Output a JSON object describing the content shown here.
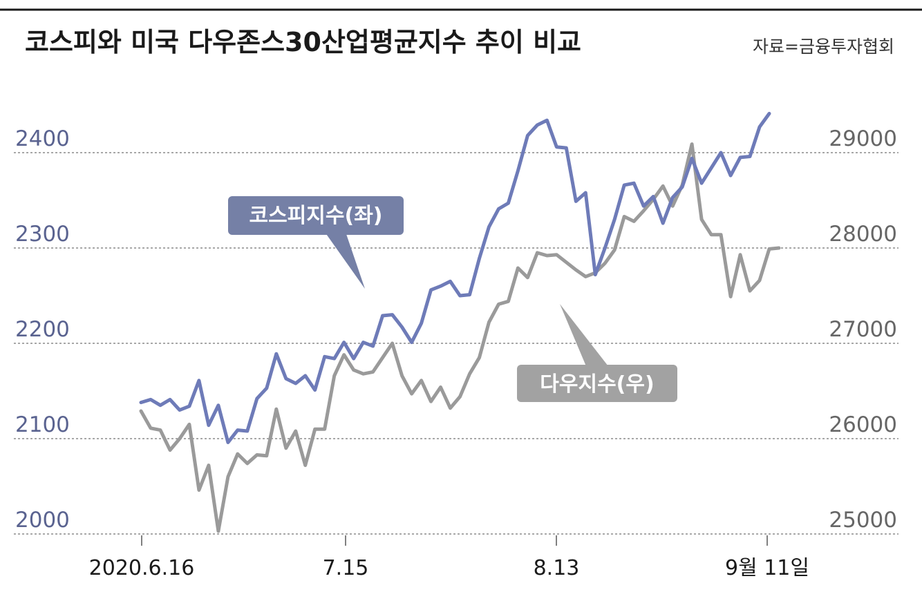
{
  "title": "코스피와 미국 다우존스30산업평균지수 추이 비교",
  "source": "자료=금융투자협회",
  "colors": {
    "kospi": "#6e7bb8",
    "dow": "#9a9a9a",
    "left_axis_text": "#5a6390",
    "right_axis_text": "#666666",
    "callout_kospi": "#7580a6",
    "callout_dow": "#a2a2a2"
  },
  "chart_data": {
    "type": "line",
    "title": "코스피와 미국 다우존스30산업평균지수 추이 비교",
    "x_ticks": [
      "2020.6.16",
      "7.15",
      "8.13",
      "9월 11일"
    ],
    "left_axis": {
      "ticks": [
        "2000",
        "2100",
        "2200",
        "2300",
        "2400"
      ],
      "range": [
        2000,
        2550
      ]
    },
    "right_axis": {
      "ticks": [
        "25000",
        "26000",
        "27000",
        "28000",
        "29000"
      ],
      "range": [
        25000,
        30500
      ]
    },
    "grid": true,
    "series": [
      {
        "name": "코스피지수(좌)",
        "axis": "left",
        "values": [
          2138,
          2141,
          2135,
          2141,
          2130,
          2134,
          2161,
          2114,
          2135,
          2096,
          2109,
          2108,
          2142,
          2153,
          2189,
          2163,
          2158,
          2166,
          2151,
          2186,
          2184,
          2201,
          2184,
          2201,
          2197,
          2229,
          2230,
          2217,
          2201,
          2221,
          2256,
          2260,
          2265,
          2250,
          2251,
          2289,
          2322,
          2341,
          2347,
          2381,
          2418,
          2429,
          2434,
          2406,
          2405,
          2349,
          2358,
          2272,
          2300,
          2330,
          2366,
          2368,
          2344,
          2354,
          2326,
          2353,
          2364,
          2394,
          2368,
          2384,
          2400,
          2376,
          2395,
          2396,
          2427,
          2441
        ]
      },
      {
        "name": "다우지수(우)",
        "axis": "right",
        "values": [
          26290,
          26110,
          26090,
          25880,
          26000,
          26150,
          25460,
          25720,
          25030,
          25600,
          25840,
          25740,
          25830,
          25820,
          26310,
          25900,
          26080,
          25720,
          26100,
          26100,
          26660,
          26880,
          26720,
          26680,
          26700,
          26850,
          27000,
          26660,
          26470,
          26610,
          26390,
          26540,
          26320,
          26440,
          26680,
          26850,
          27220,
          27410,
          27440,
          27790,
          27690,
          27950,
          27920,
          27930,
          27850,
          27770,
          27700,
          27740,
          27840,
          27980,
          28330,
          28280,
          28390,
          28510,
          28650,
          28440,
          28660,
          29090,
          28300,
          28140,
          28140,
          27490,
          27930,
          27550,
          27660,
          27990,
          28000
        ]
      }
    ]
  },
  "callouts": {
    "kospi": "코스피지수(좌)",
    "dow": "다우지수(우)"
  }
}
